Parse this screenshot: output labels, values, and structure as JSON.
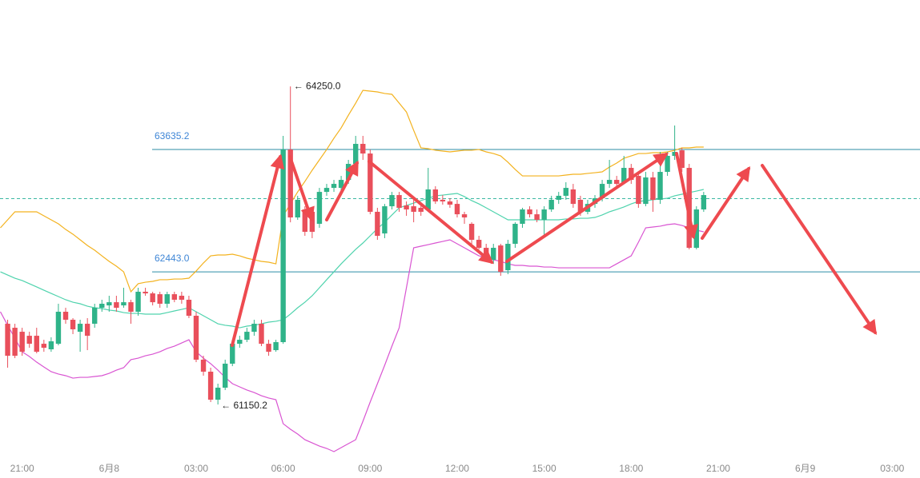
{
  "chart_data": {
    "type": "candlestick",
    "categories": [
      null,
      null,
      null,
      "21:00",
      null,
      null,
      null,
      null,
      null,
      null,
      null,
      null,
      null,
      null,
      null,
      "6月8",
      null,
      null,
      null,
      null,
      null,
      null,
      null,
      null,
      null,
      null,
      null,
      "03:00",
      null,
      null,
      null,
      null,
      null,
      null,
      null,
      null,
      null,
      null,
      null,
      "06:00",
      null,
      null,
      null,
      null,
      null,
      null,
      null,
      null,
      null,
      null,
      null,
      "09:00",
      null,
      null,
      null,
      null,
      null,
      null,
      null,
      null,
      null,
      null,
      null,
      "12:00",
      null,
      null,
      null,
      null,
      null,
      null,
      null,
      null,
      null,
      null,
      null,
      "15:00",
      null,
      null,
      null,
      null,
      null,
      null,
      null,
      null,
      null,
      null,
      null,
      "18:00",
      null,
      null,
      null,
      null,
      null,
      null,
      null,
      null,
      null,
      null,
      null,
      "21:00",
      null,
      null,
      null,
      null,
      null,
      null,
      null,
      null,
      null,
      null,
      null,
      "6月9",
      null,
      null,
      null,
      null,
      null,
      null,
      null,
      null,
      null,
      null,
      null,
      "03:00",
      null,
      null,
      null
    ],
    "open": [
      null,
      61937,
      61898,
      61859,
      61820,
      61820,
      61742,
      61688,
      61742,
      62054,
      61976,
      61859,
      61937,
      61937,
      62093,
      62116,
      62147,
      62116,
      62147,
      62054,
      62249,
      62233,
      62225,
      62132,
      62225,
      62210,
      62171,
      62015,
      61587,
      61470,
      61197,
      61314,
      61548,
      61742,
      61781,
      61859,
      61937,
      61742,
      61680,
      61758,
      63635,
      62973,
      63051,
      63028,
      62911,
      63222,
      63261,
      63261,
      63339,
      63495,
      63690,
      63596,
      63028,
      62817,
      63082,
      63191,
      63090,
      63082,
      63067,
      63051,
      63246,
      63145,
      63129,
      63105,
      63004,
      62911,
      62755,
      62677,
      62560,
      62700,
      62459,
      62716,
      62911,
      63051,
      63004,
      62950,
      63051,
      63145,
      63184,
      63246,
      63145,
      63028,
      63105,
      63160,
      63300,
      63339,
      63316,
      63456,
      63378,
      63105,
      63363,
      63145,
      63417,
      63573,
      63627,
      63456,
      62677,
      63051,
      null,
      null,
      null,
      null,
      null,
      null,
      null,
      null,
      null,
      null,
      null,
      null,
      null,
      null,
      null,
      null,
      null,
      null,
      null,
      null,
      null,
      null,
      null,
      null,
      null,
      null,
      null,
      null,
      null
    ],
    "high": [
      null,
      61976,
      61937,
      61898,
      61859,
      61898,
      61781,
      61805,
      62132,
      62093,
      61992,
      61976,
      61992,
      62132,
      62171,
      62210,
      62210,
      62288,
      62171,
      62288,
      62288,
      62249,
      62249,
      62249,
      62249,
      62249,
      62210,
      62054,
      61625,
      61509,
      61353,
      61587,
      61781,
      61820,
      61898,
      61976,
      61976,
      61781,
      61781,
      63768,
      64250,
      63184,
      63082,
      63067,
      63261,
      63300,
      63339,
      63378,
      63534,
      63768,
      63768,
      63635,
      63067,
      63105,
      63222,
      63222,
      63129,
      63145,
      63105,
      63456,
      63277,
      63191,
      63160,
      63145,
      63028,
      62926,
      62794,
      62716,
      62716,
      62716,
      62755,
      62926,
      63067,
      63082,
      63051,
      63082,
      63184,
      63222,
      63316,
      63300,
      63184,
      63145,
      63191,
      63339,
      63534,
      63378,
      63573,
      63495,
      63417,
      63417,
      63417,
      63612,
      63612,
      63869,
      63651,
      63495,
      63082,
      63222,
      null,
      null,
      null,
      null,
      null,
      null,
      null,
      null,
      null,
      null,
      null,
      null,
      null,
      null,
      null,
      null,
      null,
      null,
      null,
      null,
      null,
      null,
      null,
      null,
      null,
      null,
      null,
      null,
      null
    ],
    "low": [
      null,
      61509,
      61602,
      61625,
      61703,
      61649,
      61664,
      61664,
      61727,
      61937,
      61836,
      61664,
      61680,
      61898,
      62054,
      62054,
      62054,
      62093,
      61937,
      62015,
      62210,
      62116,
      62093,
      62093,
      62147,
      62132,
      61992,
      61563,
      61431,
      61174,
      61150.2,
      61291,
      61524,
      61703,
      61758,
      61820,
      61719,
      61625,
      61664,
      61742,
      62926,
      62950,
      62794,
      62771,
      62872,
      63184,
      63222,
      63222,
      63300,
      63456,
      63534,
      63004,
      62755,
      62771,
      63051,
      63028,
      62989,
      62926,
      62989,
      63028,
      63105,
      63098,
      63067,
      62973,
      62911,
      62716,
      62662,
      62560,
      62521,
      62404,
      62420,
      62677,
      62872,
      62973,
      62926,
      62794,
      63028,
      63105,
      63145,
      63067,
      62989,
      63004,
      63067,
      63129,
      63261,
      63261,
      63300,
      63300,
      63067,
      63082,
      63028,
      63105,
      63378,
      63534,
      63417,
      62662,
      62662,
      63028,
      null,
      null,
      null,
      null,
      null,
      null,
      null,
      null,
      null,
      null,
      null,
      null,
      null,
      null,
      null,
      null,
      null,
      null,
      null,
      null,
      null,
      null,
      null,
      null,
      null,
      null,
      null,
      null,
      null
    ],
    "close": [
      null,
      61625,
      61625,
      61664,
      61742,
      61664,
      61703,
      61766,
      62054,
      61976,
      61883,
      61937,
      61820,
      62093,
      62132,
      62147,
      62093,
      62147,
      62054,
      62249,
      62233,
      62147,
      62132,
      62225,
      62171,
      62171,
      62015,
      61587,
      61470,
      61197,
      61314,
      61548,
      61742,
      61781,
      61859,
      61937,
      61742,
      61664,
      61758,
      63635,
      62973,
      63145,
      62833,
      62833,
      63222,
      63261,
      63300,
      63339,
      63495,
      63690,
      63596,
      63028,
      62794,
      63082,
      63191,
      63067,
      63051,
      63028,
      63028,
      63246,
      63129,
      63129,
      63098,
      63004,
      62973,
      62755,
      62677,
      62584,
      62677,
      62443,
      62716,
      62911,
      63051,
      63004,
      62950,
      63051,
      63145,
      63184,
      63261,
      63105,
      63028,
      63105,
      63160,
      63300,
      63339,
      63300,
      63456,
      63339,
      63105,
      63363,
      63145,
      63417,
      63573,
      63612,
      63456,
      62677,
      63051,
      63191,
      null,
      null,
      null,
      null,
      null,
      null,
      null,
      null,
      null,
      null,
      null,
      null,
      null,
      null,
      null,
      null,
      null,
      null,
      null,
      null,
      null,
      null,
      null,
      null,
      null,
      null,
      null,
      null,
      null
    ],
    "up_color": "#2fb389",
    "down_color": "#e94f5b",
    "lines": [
      {
        "color": "#f3b21e",
        "values": [
          62872,
          62950,
          63028,
          63028,
          63028,
          63028,
          62989,
          62950,
          62911,
          62856,
          62810,
          62755,
          62700,
          62654,
          62599,
          62545,
          62498,
          62443,
          62249,
          62327,
          62342,
          62350,
          62366,
          62366,
          62373,
          62373,
          62381,
          62451,
          62529,
          62599,
          62607,
          62607,
          62615,
          62599,
          62576,
          62560,
          62545,
          62537,
          62521,
          62989,
          63105,
          63222,
          63324,
          63433,
          63534,
          63635,
          63745,
          63846,
          63970,
          64087,
          64212,
          64204,
          64196,
          64181,
          64173,
          64087,
          64001,
          63822,
          63651,
          63643,
          63628,
          63620,
          63612,
          63620,
          63628,
          63628,
          63635,
          63612,
          63596,
          63573,
          63511,
          63441,
          63378,
          63378,
          63378,
          63378,
          63378,
          63378,
          63386,
          63394,
          63394,
          63402,
          63409,
          63417,
          63464,
          63503,
          63550,
          63573,
          63596,
          63596,
          63604,
          63604,
          63612,
          63627,
          63651,
          63651,
          63659,
          63659,
          null,
          null,
          null,
          null,
          null,
          null,
          null,
          null,
          null,
          null,
          null,
          null,
          null,
          null,
          null,
          null,
          null,
          null,
          null,
          null,
          null,
          null,
          null,
          null,
          null,
          null,
          null,
          null,
          null
        ]
      },
      {
        "color": "#4fd3ad",
        "values": [
          62443,
          62412,
          62381,
          62358,
          62327,
          62296,
          62264,
          62233,
          62202,
          62171,
          62147,
          62132,
          62108,
          62093,
          62085,
          62070,
          62062,
          62046,
          62038,
          62038,
          62031,
          62031,
          62031,
          62046,
          62062,
          62077,
          62093,
          62054,
          62015,
          61976,
          61937,
          61922,
          61914,
          61898,
          61914,
          61922,
          61937,
          61953,
          61961,
          61976,
          62031,
          62093,
          62147,
          62210,
          62288,
          62366,
          62443,
          62521,
          62592,
          62662,
          62724,
          62794,
          62864,
          62926,
          62997,
          63067,
          63090,
          63113,
          63137,
          63160,
          63184,
          63191,
          63199,
          63207,
          63176,
          63137,
          63105,
          63067,
          63028,
          62989,
          62950,
          62950,
          62950,
          62950,
          62950,
          62950,
          62950,
          62950,
          62958,
          62958,
          62965,
          62965,
          62973,
          62997,
          63028,
          63051,
          63075,
          63105,
          63129,
          63137,
          63145,
          63152,
          63160,
          63184,
          63199,
          63215,
          63230,
          63246,
          null,
          null,
          null,
          null,
          null,
          null,
          null,
          null,
          null,
          null,
          null,
          null,
          null,
          null,
          null,
          null,
          null,
          null,
          null,
          null,
          null,
          null,
          null,
          null,
          null,
          null,
          null,
          null,
          null
        ]
      },
      {
        "color": "#d955d2",
        "values": [
          62054,
          61922,
          61797,
          61664,
          61618,
          61563,
          61516,
          61470,
          61447,
          61431,
          61407,
          61415,
          61415,
          61423,
          61431,
          61454,
          61485,
          61509,
          61587,
          61602,
          61625,
          61641,
          61664,
          61696,
          61719,
          61750,
          61781,
          61664,
          61602,
          61548,
          61485,
          61415,
          61353,
          61322,
          61291,
          61267,
          61236,
          61213,
          61197,
          60963,
          60909,
          60862,
          60807,
          60776,
          60745,
          60722,
          60691,
          60730,
          60769,
          60807,
          60987,
          61174,
          61353,
          61532,
          61719,
          61898,
          62288,
          62677,
          62693,
          62708,
          62724,
          62739,
          62755,
          62716,
          62677,
          62638,
          62599,
          62584,
          62560,
          62545,
          62521,
          62506,
          62506,
          62498,
          62498,
          62490,
          62490,
          62482,
          62482,
          62482,
          62482,
          62482,
          62482,
          62482,
          62482,
          62521,
          62560,
          62599,
          62732,
          62872,
          62880,
          62888,
          62903,
          62911,
          62895,
          62872,
          62849,
          62833,
          null,
          null,
          null,
          null,
          null,
          null,
          null,
          null,
          null,
          null,
          null,
          null,
          null,
          null,
          null,
          null,
          null,
          null,
          null,
          null,
          null,
          null,
          null,
          null,
          null,
          null,
          null,
          null,
          null
        ]
      }
    ],
    "levels": [
      63635.2,
      {
        "value": 62443,
        "label": "62443.0"
      }
    ],
    "level_color": "#2c8ea6",
    "price_line": 63156,
    "price_line_color": "#3bb8a2",
    "annotations": [
      {
        "value": 64250,
        "label": "← 64250.0"
      },
      {
        "value": 61150.2,
        "label": "← 61150.2"
      }
    ],
    "ylim": [
      60652,
      65092
    ]
  }
}
